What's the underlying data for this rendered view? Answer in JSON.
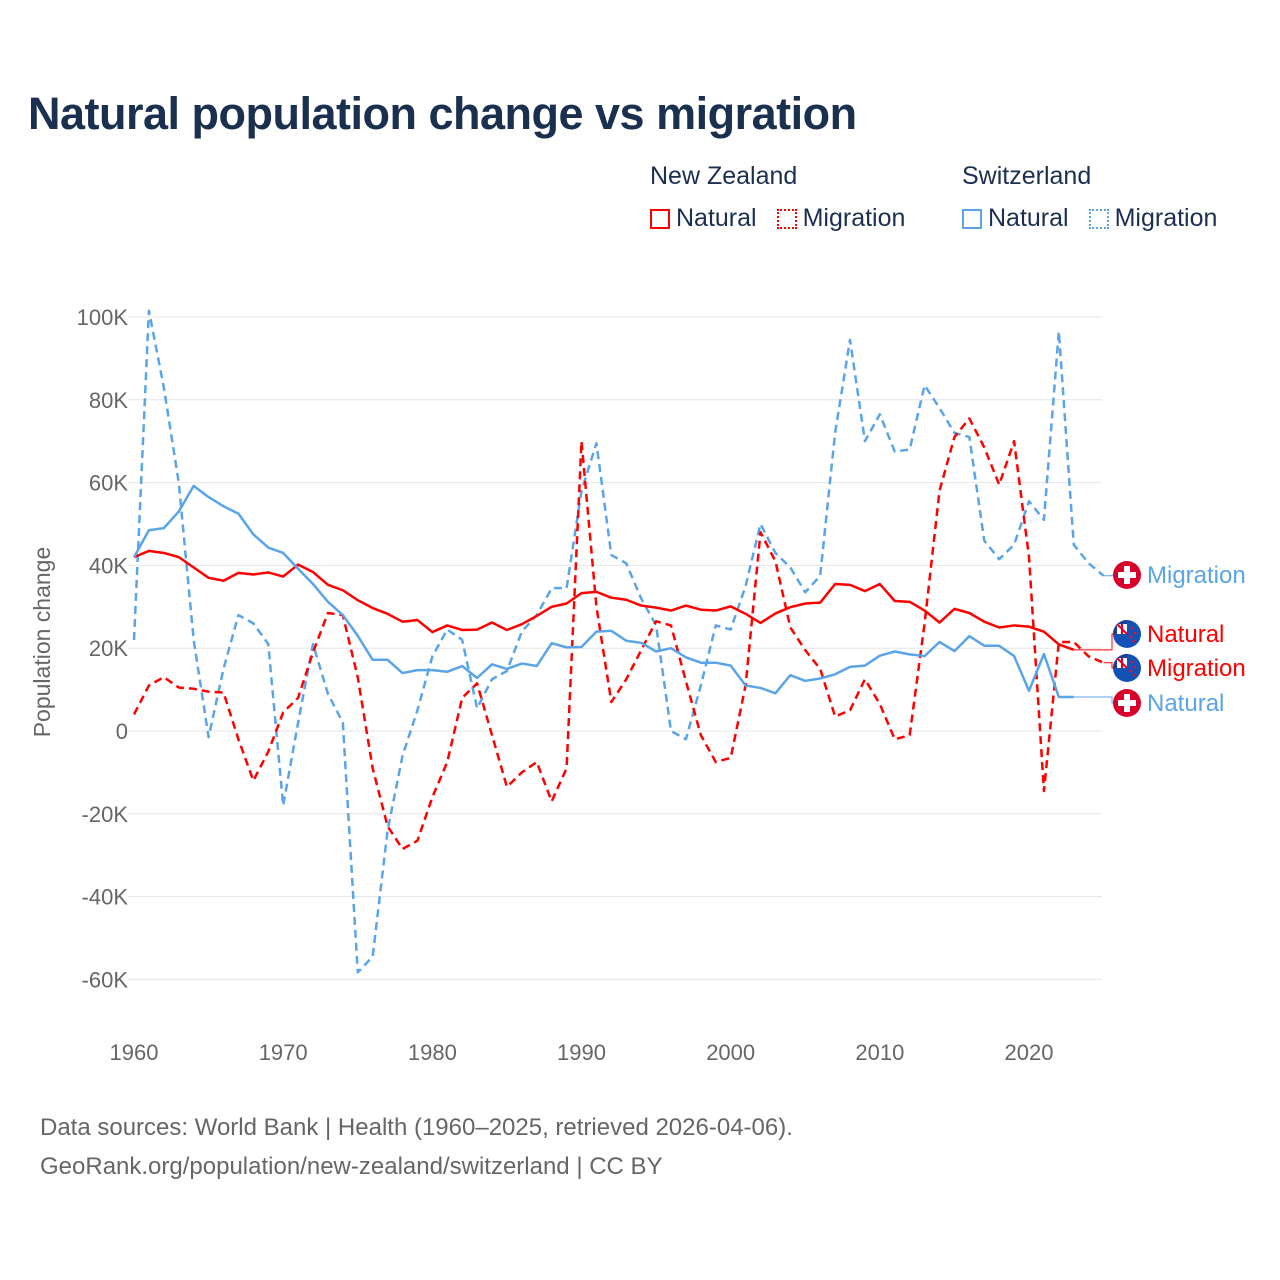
{
  "title": "Natural population change vs migration",
  "legend": {
    "groups": [
      {
        "name": "New Zealand",
        "items": [
          {
            "label": "Natural",
            "style": "solid"
          },
          {
            "label": "Migration",
            "style": "dotted"
          }
        ],
        "color": "#ff0000"
      },
      {
        "name": "Switzerland",
        "items": [
          {
            "label": "Natural",
            "style": "solid"
          },
          {
            "label": "Migration",
            "style": "dotted"
          }
        ],
        "color": "#5ba4e8"
      }
    ]
  },
  "footer": {
    "line1": "Data sources: World Bank | Health (1960–2025, retrieved 2026-04-06).",
    "line2": "GeoRank.org/population/new-zealand/switzerland | CC BY"
  },
  "chart_data": {
    "type": "line",
    "title": "Natural population change vs migration",
    "xlabel": "",
    "ylabel": "Population change",
    "xlim": [
      1960,
      2025
    ],
    "ylim": [
      -60000,
      100000
    ],
    "x_ticks": [
      1960,
      1970,
      1980,
      1990,
      2000,
      2010,
      2020
    ],
    "x_tick_labels": [
      "1960",
      "1970",
      "1980",
      "1990",
      "2000",
      "2010",
      "2020"
    ],
    "y_ticks": [
      100000,
      80000,
      60000,
      40000,
      20000,
      0,
      -20000,
      -40000,
      -60000
    ],
    "y_tick_labels": [
      "100K",
      "80K",
      "60K",
      "40K",
      "20K",
      "0",
      "-20K",
      "-40K",
      "-60K"
    ],
    "grid": true,
    "legend_position": "top-right",
    "start_year": 1960,
    "series": [
      {
        "name": "New Zealand Natural",
        "country": "New Zealand",
        "end_label": "Natural",
        "flag": "nz",
        "color": "#ff0000",
        "dash": "solid",
        "values": [
          42000,
          43500,
          43000,
          42000,
          39500,
          37000,
          36300,
          38200,
          37800,
          38300,
          37300,
          40200,
          38400,
          35300,
          34000,
          31600,
          29700,
          28300,
          26400,
          26800,
          23900,
          25500,
          24400,
          24500,
          26200,
          24400,
          25800,
          27800,
          30000,
          30800,
          33300,
          33600,
          32200,
          31700,
          30300,
          29800,
          29100,
          30300,
          29300,
          29100,
          30100,
          28300,
          26100,
          28400,
          29900,
          30800,
          31000,
          35500,
          35300,
          33800,
          35500,
          31400,
          31200,
          29100,
          26200,
          29500,
          28500,
          26400,
          25000,
          25500,
          25200,
          24000,
          20900,
          19600
        ]
      },
      {
        "name": "New Zealand Migration",
        "country": "New Zealand",
        "end_label": "Migration",
        "flag": "nz",
        "color": "#ff0000",
        "dash": "dashed",
        "values": [
          4000,
          11000,
          13000,
          10500,
          10200,
          9500,
          9300,
          -2000,
          -12000,
          -5000,
          4500,
          8000,
          19000,
          28500,
          28000,
          13000,
          -9000,
          -23000,
          -28500,
          -26500,
          -16000,
          -7500,
          8000,
          11500,
          -1000,
          -13500,
          -10000,
          -7500,
          -17000,
          -9000,
          70000,
          30000,
          7000,
          12500,
          19500,
          26500,
          25500,
          12000,
          -1000,
          -7500,
          -6500,
          11000,
          48000,
          41000,
          25000,
          19500,
          15000,
          3500,
          5000,
          12500,
          6500,
          -2000,
          -1000,
          26000,
          58000,
          71000,
          75500,
          68500,
          59500,
          70000,
          42000,
          -14500,
          21500,
          21500,
          18000,
          16500
        ]
      },
      {
        "name": "Switzerland Natural",
        "country": "Switzerland",
        "end_label": "Natural",
        "flag": "ch",
        "color": "#5ba4e8",
        "dash": "solid",
        "values": [
          42000,
          48500,
          49000,
          53000,
          59200,
          56500,
          54300,
          52500,
          47500,
          44300,
          43000,
          39200,
          35500,
          31200,
          28000,
          23000,
          17200,
          17200,
          14000,
          14700,
          14700,
          14300,
          15700,
          12800,
          16100,
          15000,
          16300,
          15700,
          21200,
          20200,
          20300,
          24000,
          24200,
          21800,
          21300,
          19200,
          20000,
          17800,
          16500,
          16500,
          15800,
          11000,
          10400,
          9100,
          13500,
          12100,
          12700,
          13700,
          15500,
          15800,
          18200,
          19200,
          18500,
          18100,
          21500,
          19300,
          22900,
          20600,
          20600,
          18100,
          9700,
          18600,
          8200,
          8200
        ]
      },
      {
        "name": "Switzerland Migration",
        "country": "Switzerland",
        "end_label": "Migration",
        "flag": "ch",
        "color": "#5ba4e8",
        "dash": "dashed",
        "values": [
          22000,
          101500,
          83000,
          60000,
          22000,
          -1500,
          15000,
          28000,
          26000,
          21000,
          -18000,
          2000,
          21000,
          9000,
          2000,
          -58300,
          -54500,
          -24000,
          -6000,
          5000,
          18000,
          24500,
          22000,
          5500,
          12500,
          14500,
          24000,
          28000,
          34500,
          34500,
          58000,
          69500,
          42500,
          40500,
          32000,
          25500,
          0,
          -2000,
          11000,
          25500,
          24500,
          35000,
          50000,
          43000,
          39500,
          33500,
          37500,
          72000,
          94500,
          70000,
          76500,
          67500,
          68000,
          83500,
          78000,
          72000,
          71000,
          46000,
          41500,
          45000,
          55500,
          51000,
          96500,
          45000,
          40500,
          37500
        ]
      }
    ]
  }
}
